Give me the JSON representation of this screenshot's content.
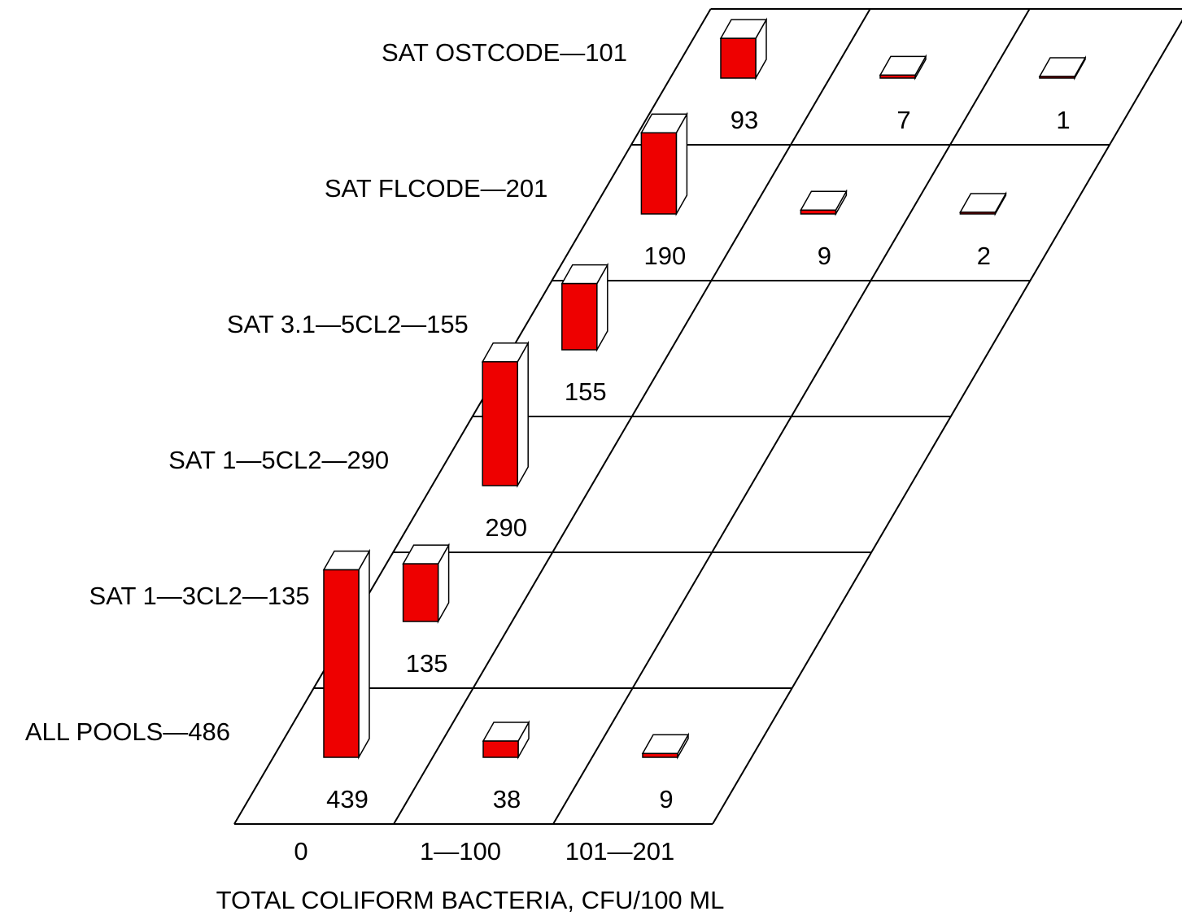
{
  "chart_data": {
    "type": "bar",
    "subtype": "3d-perspective-bar",
    "title": "",
    "xlabel": "TOTAL COLIFORM BACTERIA, CFU/100 ML",
    "ylabel": "",
    "categories": [
      "0",
      "1—100",
      "101—201"
    ],
    "series": [
      {
        "name": "ALL POOLS—486",
        "values": [
          439,
          38,
          9
        ]
      },
      {
        "name": "SAT 1—3CL2—135",
        "values": [
          135,
          null,
          null
        ]
      },
      {
        "name": "SAT 1—5CL2—290",
        "values": [
          290,
          null,
          null
        ]
      },
      {
        "name": "SAT 3.1—5CL2—155",
        "values": [
          155,
          null,
          null
        ]
      },
      {
        "name": "SAT FLCODE—201",
        "values": [
          190,
          9,
          2
        ]
      },
      {
        "name": "SAT OSTCODE—101",
        "values": [
          93,
          7,
          1
        ]
      }
    ],
    "colors": {
      "bar_front": "#ee0000",
      "bar_face": "#ffffff",
      "line": "#000000"
    },
    "grid": true,
    "legend": "row labels on left"
  }
}
